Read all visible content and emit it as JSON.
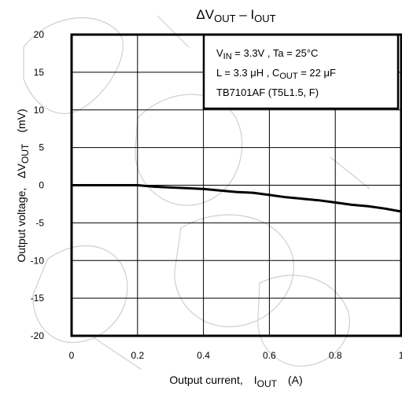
{
  "chart_data": {
    "type": "line",
    "title": {
      "delta": "Δ",
      "v": "V",
      "v_sub": "OUT",
      "dash": " – ",
      "i": "I",
      "i_sub": "OUT"
    },
    "xlabel": {
      "main": "Output current,",
      "sym": "I",
      "sub": "OUT",
      "unit": "(A)"
    },
    "ylabel": {
      "main": "Output voltage,",
      "delta": "Δ",
      "sym": "V",
      "sub": "OUT",
      "unit": "(mV)"
    },
    "xlim": [
      0,
      1
    ],
    "ylim": [
      -20,
      20
    ],
    "x_ticks": [
      0,
      0.2,
      0.4,
      0.6,
      0.8,
      1
    ],
    "x_tick_labels": [
      "0",
      "0.2",
      "0.4",
      "0.6",
      "0.8",
      "1"
    ],
    "y_ticks": [
      20,
      15,
      10,
      5,
      0,
      -5,
      -10,
      -15,
      -20
    ],
    "y_tick_labels": [
      "20",
      "15",
      "10",
      "5",
      "0",
      "-5",
      "-10",
      "-15",
      "-20"
    ],
    "grid": true,
    "series": [
      {
        "x": [
          0,
          0.1,
          0.2,
          0.25,
          0.3,
          0.35,
          0.4,
          0.45,
          0.5,
          0.55,
          0.6,
          0.65,
          0.7,
          0.75,
          0.8,
          0.85,
          0.9,
          0.95,
          1.0
        ],
        "y": [
          0,
          0,
          0,
          -0.2,
          -0.3,
          -0.4,
          -0.5,
          -0.7,
          -0.9,
          -1.0,
          -1.3,
          -1.6,
          -1.8,
          -2.0,
          -2.3,
          -2.6,
          -2.8,
          -3.1,
          -3.5
        ]
      }
    ],
    "annotation": {
      "line1": {
        "v": "V",
        "v_sub": "IN",
        "rest": " = 3.3V , Ta = 25°C"
      },
      "line2": {
        "pre": "L = 3.3 μH , C",
        "c_sub": "OUT",
        "post": " = 22 μF"
      },
      "line3": "TB7101AF (T5L1.5, F)"
    }
  }
}
